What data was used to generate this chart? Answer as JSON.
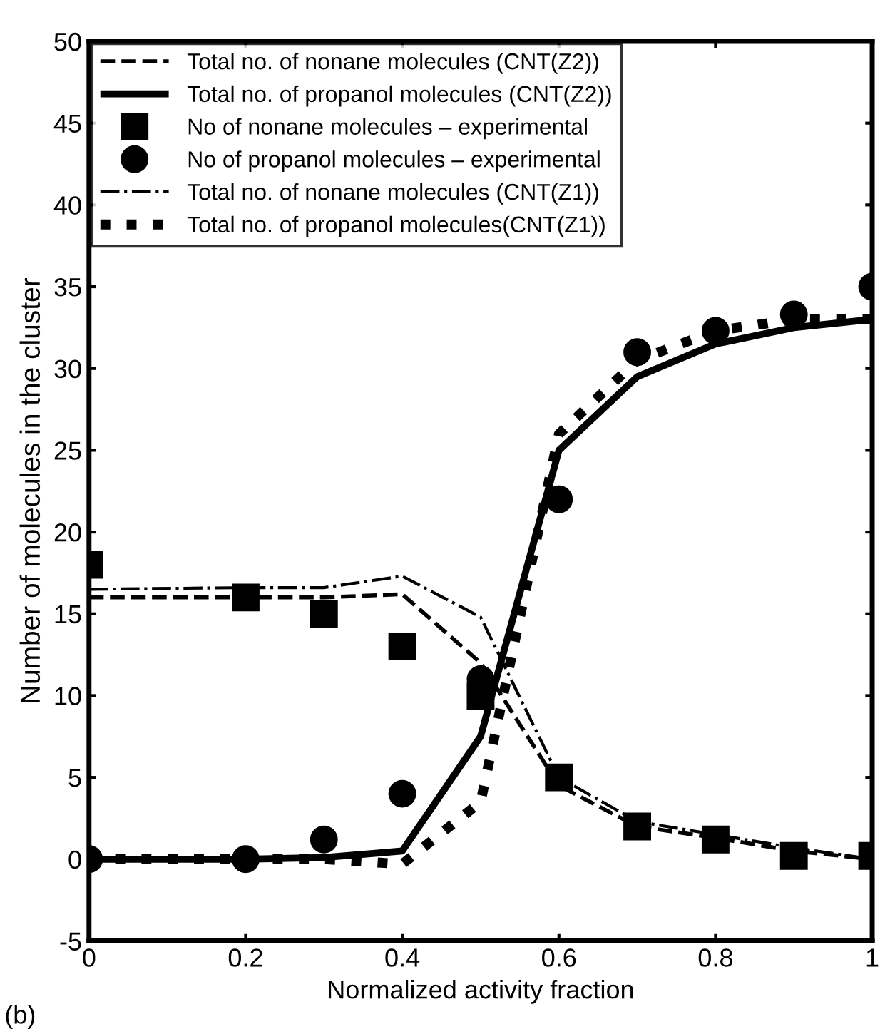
{
  "chart_data": {
    "type": "line",
    "xlabel": "Normalized activity fraction",
    "ylabel": "Number of molecules in the cluster",
    "x": [
      0,
      0.2,
      0.3,
      0.4,
      0.5,
      0.6,
      0.7,
      0.8,
      0.9,
      1.0
    ],
    "xlim": [
      0,
      1
    ],
    "xticks": [
      0,
      0.2,
      0.4,
      0.6,
      0.8,
      1
    ],
    "ylim": [
      -5,
      50
    ],
    "yticks": [
      -5,
      0,
      5,
      10,
      15,
      20,
      25,
      30,
      35,
      40,
      45,
      50
    ],
    "grid": false,
    "legend": "top left",
    "annotations": [
      "(b)"
    ],
    "series": [
      {
        "name": "Total no. of nonane molecules (CNT(Z2))",
        "line_style": "dashed",
        "marker": "none",
        "color": "#000000",
        "values": [
          16,
          16,
          16,
          16.2,
          12,
          4.5,
          2,
          1.3,
          0.5,
          0
        ]
      },
      {
        "name": "Total no. of propanol molecules (CNT(Z2))",
        "line_style": "solid",
        "marker": "none",
        "color": "#000000",
        "values": [
          0,
          0,
          0.1,
          0.5,
          7.5,
          25,
          29.5,
          31.5,
          32.5,
          33
        ]
      },
      {
        "name": "No of nonane molecules – experimental",
        "type": "scatter",
        "marker": "square",
        "color": "#000000",
        "values": [
          18,
          16,
          15,
          13,
          10,
          5,
          2,
          1.2,
          0.2,
          0.2
        ]
      },
      {
        "name": "No of propanol molecules – experimental",
        "type": "scatter",
        "marker": "circle",
        "color": "#000000",
        "values": [
          0,
          0,
          1.2,
          4,
          11,
          22,
          31,
          32.3,
          33.3,
          35
        ]
      },
      {
        "name": "Total no. of nonane molecules (CNT(Z1))",
        "line_style": "dashdot",
        "marker": "none",
        "color": "#000000",
        "values": [
          16.5,
          16.6,
          16.6,
          17.3,
          14.8,
          5,
          2.3,
          1.5,
          0.7,
          0
        ]
      },
      {
        "name": "Total no. of propanol molecules(CNT(Z1))",
        "line_style": "dotted",
        "marker": "none",
        "color": "#000000",
        "values": [
          0,
          0,
          0,
          -0.3,
          3.5,
          26,
          30.5,
          32.3,
          33,
          33
        ]
      }
    ]
  }
}
